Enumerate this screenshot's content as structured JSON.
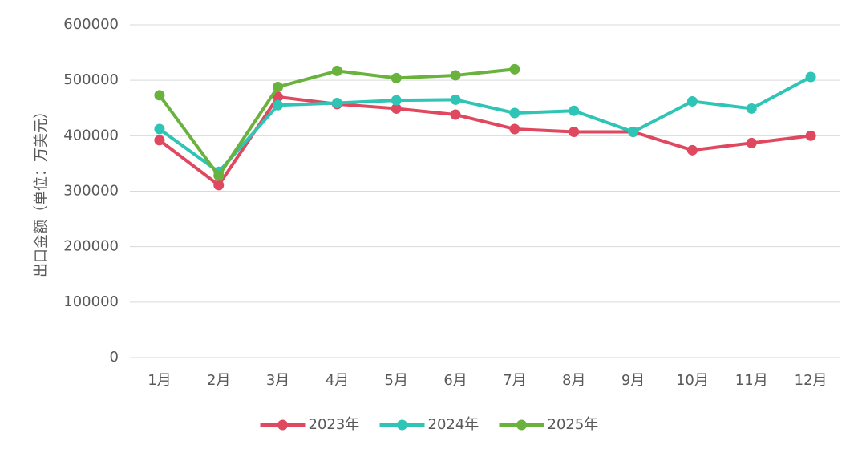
{
  "chart_data": {
    "type": "line",
    "y_label": "出口金额（单位：万美元）",
    "categories": [
      "1月",
      "2月",
      "3月",
      "4月",
      "5月",
      "6月",
      "7月",
      "8月",
      "9月",
      "10月",
      "11月",
      "12月"
    ],
    "series": [
      {
        "name": "2023年",
        "color": "#e0485f",
        "values": [
          392000,
          311000,
          470000,
          457000,
          449000,
          438000,
          412000,
          407000,
          407000,
          374000,
          387000,
          400000
        ]
      },
      {
        "name": "2024年",
        "color": "#2ec4b6",
        "values": [
          412000,
          335000,
          455000,
          459000,
          464000,
          465000,
          441000,
          445000,
          407000,
          462000,
          449000,
          506000
        ]
      },
      {
        "name": "2025年",
        "color": "#6ab23e",
        "values": [
          473000,
          328000,
          488000,
          517000,
          504000,
          509000,
          520000,
          null,
          null,
          null,
          null,
          null
        ]
      }
    ],
    "ylim": [
      0,
      600000
    ],
    "yticks": [
      0,
      100000,
      200000,
      300000,
      400000,
      500000,
      600000
    ],
    "grid": true,
    "legend": "bottom"
  }
}
